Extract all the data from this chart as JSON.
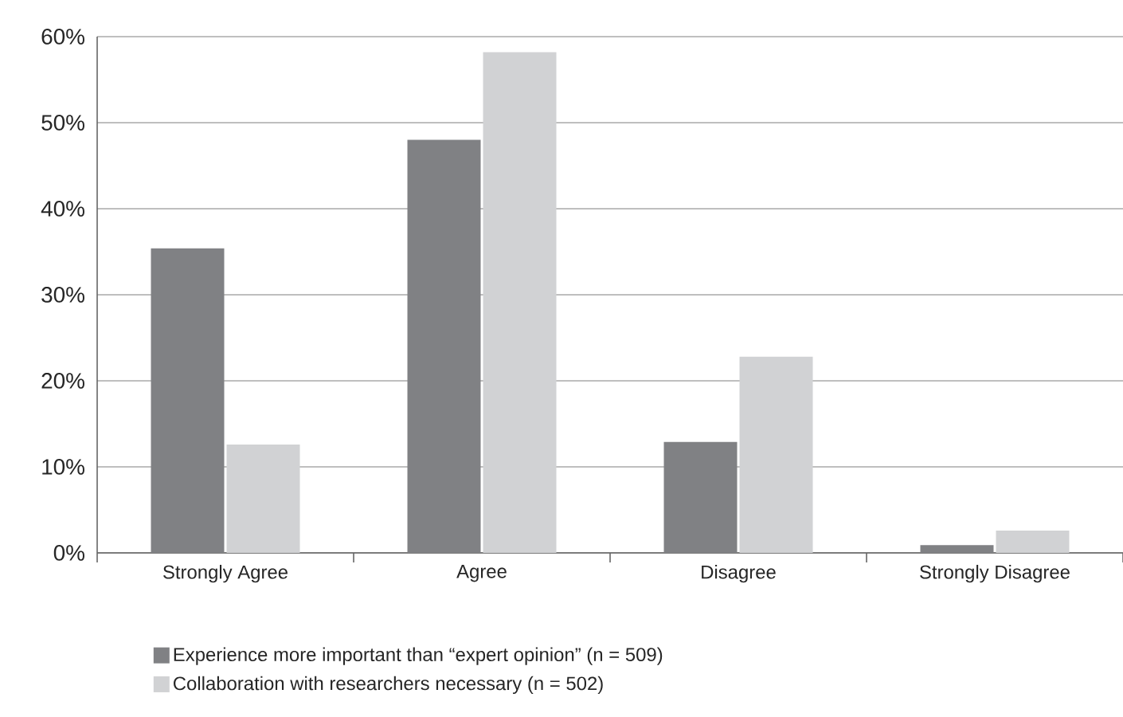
{
  "chart_data": {
    "type": "bar",
    "categories": [
      "Strongly Agree",
      "Agree",
      "Disagree",
      "Strongly Disagree"
    ],
    "series": [
      {
        "name": "Experience more important than “expert opinion” (n = 509)",
        "color": "#808184",
        "values": [
          35.4,
          48.0,
          12.9,
          0.9
        ]
      },
      {
        "name": "Collaboration with researchers necessary  (n = 502)",
        "color": "#d1d2d4",
        "values": [
          12.6,
          58.2,
          22.8,
          2.6
        ]
      }
    ],
    "ylim": [
      0,
      60
    ],
    "yticks": [
      {
        "value": 0,
        "label": "0%"
      },
      {
        "value": 10,
        "label": "10%"
      },
      {
        "value": 20,
        "label": "20%"
      },
      {
        "value": 30,
        "label": "30%"
      },
      {
        "value": 40,
        "label": "40%"
      },
      {
        "value": 50,
        "label": "50%"
      },
      {
        "value": 60,
        "label": "60%"
      }
    ],
    "grid": "y",
    "legend": "bottom"
  }
}
